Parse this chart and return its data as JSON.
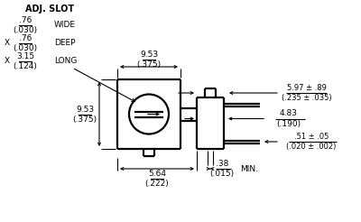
{
  "background_color": "#ffffff",
  "line_color": "#000000",
  "text_color": "#000000",
  "adj_slot_text": "ADJ. SLOT",
  "wide_num": ".76",
  "wide_den": "(.030)",
  "wide_text": "WIDE",
  "deep_num": ".76",
  "deep_den": "(.030)",
  "deep_text": "DEEP",
  "long_num": "3.15",
  "long_den": "(.124)",
  "long_text": "LONG",
  "dim_9_53_num": "9.53",
  "dim_9_53_den": "(.375)",
  "dim_5_64_num": "5.64",
  "dim_5_64_den": "(.222)",
  "dim_9_53v_num": "9.53",
  "dim_9_53v_den": "(.375)",
  "dim_597_num": "5.97 ± .89",
  "dim_597_den": "(.235 ± .035)",
  "dim_483_num": "4.83",
  "dim_483_den": "(.190)",
  "dim_051_num": ".51 ± .05",
  "dim_051_den": "(.020 ± .002)",
  "dim_038_num": ".38",
  "dim_038_den": "(.015)",
  "min_text": "MIN."
}
